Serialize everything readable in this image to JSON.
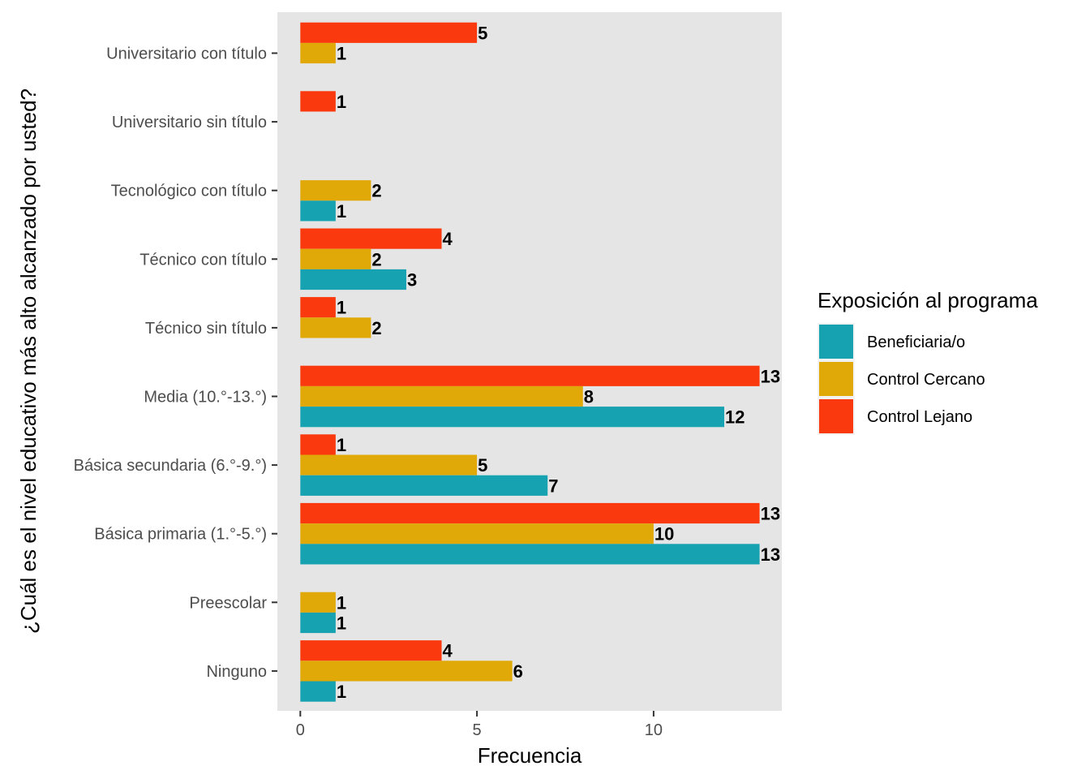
{
  "chart_data": {
    "type": "bar",
    "orientation": "horizontal",
    "xlabel": "Frecuencia",
    "ylabel": "¿Cuál es el nivel educativo más alto alcanzado por usted?",
    "xlim": [
      0,
      13.6
    ],
    "x_ticks": [
      0,
      5,
      10
    ],
    "grid": false,
    "panel_background": "#e5e5e5",
    "categories": [
      "Universitario con título",
      "Universitario sin título",
      "Tecnológico con título",
      "Técnico con título",
      "Técnico sin título",
      "Media (10.°-13.°)",
      "Básica secundaria (6.°-9.°)",
      "Básica primaria (1.°-5.°)",
      "Preescolar",
      "Ninguno"
    ],
    "series": [
      {
        "name": "Control Lejano",
        "color": "#fa3a0e",
        "values": [
          5,
          1,
          null,
          4,
          1,
          13,
          1,
          13,
          null,
          4
        ]
      },
      {
        "name": "Control Cercano",
        "color": "#e0a908",
        "values": [
          1,
          null,
          2,
          2,
          2,
          8,
          5,
          10,
          1,
          6
        ]
      },
      {
        "name": "Beneficiaria/o",
        "color": "#16a2b0",
        "values": [
          null,
          null,
          1,
          3,
          null,
          12,
          7,
          13,
          1,
          1
        ]
      }
    ],
    "legend": {
      "title": "Exposición al programa",
      "position": "right",
      "entries": [
        "Beneficiaria/o",
        "Control Cercano",
        "Control Lejano"
      ]
    }
  }
}
